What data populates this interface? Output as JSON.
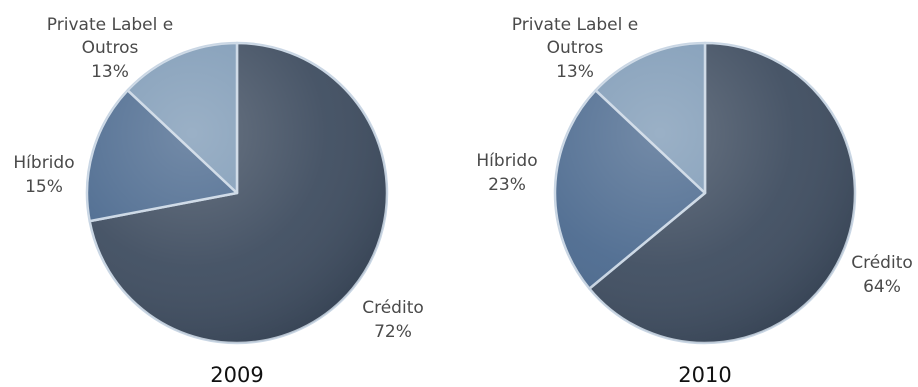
{
  "chart_data": [
    {
      "type": "pie",
      "title": "2009",
      "slices": [
        {
          "label": "Crédito",
          "value_label": "72%",
          "value": 72,
          "color": "#3f4d60"
        },
        {
          "label": "Híbrido",
          "value_label": "15%",
          "value": 15,
          "color": "#4c6a8f"
        },
        {
          "label": "Private Label e Outros",
          "value_label": "13%",
          "value": 13,
          "color": "#7e9ab6"
        }
      ]
    },
    {
      "type": "pie",
      "title": "2010",
      "slices": [
        {
          "label": "Crédito",
          "value_label": "64%",
          "value": 64,
          "color": "#3f4d60"
        },
        {
          "label": "Híbrido",
          "value_label": "23%",
          "value": 23,
          "color": "#4c6a8f"
        },
        {
          "label": "Private Label e Outros",
          "value_label": "13%",
          "value": 13,
          "color": "#7e9ab6"
        }
      ]
    }
  ]
}
